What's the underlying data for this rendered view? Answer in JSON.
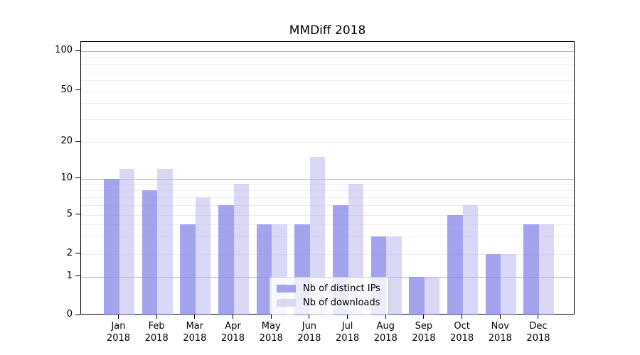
{
  "chart_data": {
    "type": "bar",
    "title": "MMDiff 2018",
    "categories": [
      "Jan",
      "Feb",
      "Mar",
      "Apr",
      "May",
      "Jun",
      "Jul",
      "Aug",
      "Sep",
      "Oct",
      "Nov",
      "Dec"
    ],
    "year_label": "2018",
    "series": [
      {
        "name": "Nb of distinct IPs",
        "color": "#a3a3ee",
        "fill_rgba": "rgba(140,140,234,0.8)",
        "values": [
          10,
          8,
          4,
          6,
          4,
          4,
          6,
          3,
          1,
          5,
          2,
          4
        ]
      },
      {
        "name": "Nb of downloads",
        "color": "#d9d9f7",
        "fill_rgba": "rgba(186,186,240,0.55)",
        "values": [
          12,
          12,
          7,
          9,
          4,
          15,
          9,
          3,
          1,
          6,
          2,
          4
        ]
      }
    ],
    "yscale": "asinh",
    "ylim": [
      0,
      100
    ],
    "ytick_labels": [
      "100",
      "50",
      "20",
      "10",
      "5",
      "2",
      "1",
      "0"
    ],
    "ytick_values": [
      100,
      50,
      20,
      10,
      5,
      2,
      1,
      0
    ],
    "major_gridlines": [
      1,
      10,
      100
    ],
    "minor_gridlines": [
      2,
      3,
      4,
      5,
      6,
      7,
      8,
      9,
      20,
      30,
      40,
      50,
      60,
      70,
      80,
      90
    ],
    "grid_major_color": "#b3b3b3",
    "grid_minor_color": "#ececec",
    "legend_position": "lower center"
  }
}
